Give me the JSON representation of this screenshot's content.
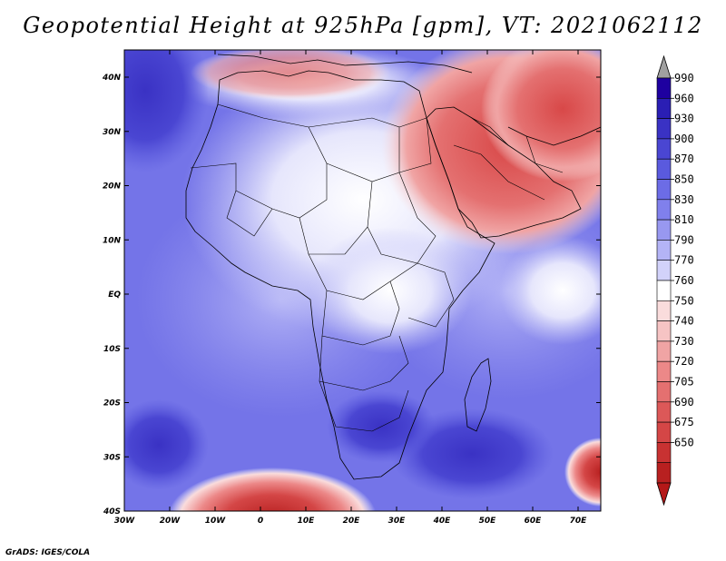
{
  "title": "Geopotential Height at 925hPa [gpm], VT: 2021062112",
  "credit": "GrADS: IGES/COLA",
  "lat_labels": [
    "40N",
    "30N",
    "20N",
    "10N",
    "EQ",
    "10S",
    "20S",
    "30S",
    "40S"
  ],
  "lon_labels": [
    "30W",
    "20W",
    "10W",
    "0",
    "10E",
    "20E",
    "30E",
    "40E",
    "50E",
    "60E",
    "70E"
  ],
  "colorbar": {
    "labels": [
      "990",
      "960",
      "930",
      "900",
      "870",
      "850",
      "830",
      "810",
      "790",
      "770",
      "760",
      "750",
      "740",
      "730",
      "720",
      "705",
      "690",
      "675",
      "650"
    ],
    "colors": [
      "#1e00a0",
      "#2a1eb4",
      "#3a32c4",
      "#4a46d2",
      "#5a5ade",
      "#6c6ce6",
      "#8080ec",
      "#9898f0",
      "#b4b4f6",
      "#d2d2fa",
      "#ffffff",
      "#fadcdc",
      "#f6c4c4",
      "#f0a4a4",
      "#ec8888",
      "#e47070",
      "#dc5858",
      "#d44646",
      "#c83232",
      "#b82020"
    ]
  }
}
